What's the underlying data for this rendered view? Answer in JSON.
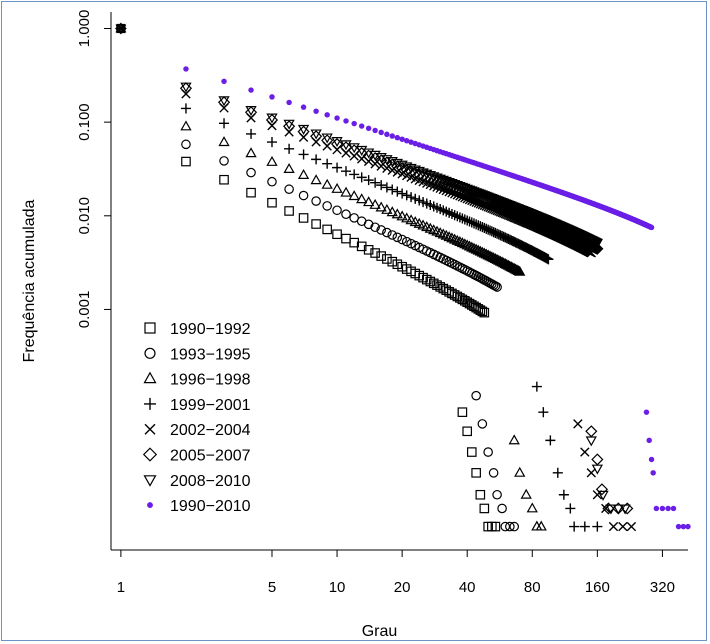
{
  "chart_data": {
    "type": "scatter",
    "title": "",
    "xlabel": "Grau",
    "ylabel": "Frequência acumulada",
    "x_scale": "log",
    "y_scale": "log",
    "x_ticks": [
      {
        "value": 1,
        "label": "1"
      },
      {
        "value": 5,
        "label": "5"
      },
      {
        "value": 10,
        "label": "10"
      },
      {
        "value": 20,
        "label": "20"
      },
      {
        "value": 40,
        "label": "40"
      },
      {
        "value": 80,
        "label": "80"
      },
      {
        "value": 160,
        "label": "160"
      },
      {
        "value": 320,
        "label": "320"
      }
    ],
    "y_ticks": [
      {
        "value": 1,
        "label": "1.000"
      },
      {
        "value": 0.1,
        "label": "0.100"
      },
      {
        "value": 0.01,
        "label": "0.010"
      },
      {
        "value": 0.001,
        "label": "0.001"
      }
    ],
    "xlim": [
      0.9,
      520
    ],
    "ylim": [
      2.7e-06,
      1.5
    ],
    "grid": false,
    "legend_position": "bottom-left",
    "series": [
      {
        "name": "1990−1992",
        "marker": "square",
        "color": "#000000",
        "params": {
          "a": 0.038,
          "b": 1.1,
          "k": 0.00045,
          "c": 1.6,
          "xmax": 48,
          "tail": [
            [
              38,
              8e-05
            ],
            [
              40,
              5e-05
            ],
            [
              42,
              3e-05
            ],
            [
              44,
              1.8e-05
            ],
            [
              46,
              1.05e-05
            ],
            [
              48,
              7.5e-06
            ],
            [
              50,
              4.8e-06
            ],
            [
              52,
              4.8e-06
            ],
            [
              54,
              4.8e-06
            ]
          ]
        }
      },
      {
        "name": "1993−1995",
        "marker": "circle",
        "color": "#000000",
        "params": {
          "a": 0.058,
          "b": 1.0,
          "k": 0.00032,
          "c": 1.6,
          "xmax": 55,
          "tail": [
            [
              44,
              0.00012
            ],
            [
              47,
              6e-05
            ],
            [
              50,
              3e-05
            ],
            [
              53,
              1.8e-05
            ],
            [
              55,
              1.05e-05
            ],
            [
              58,
              7.5e-06
            ],
            [
              60,
              4.8e-06
            ],
            [
              63,
              4.8e-06
            ],
            [
              66,
              4.8e-06
            ]
          ]
        }
      },
      {
        "name": "1996−1998",
        "marker": "triangle",
        "color": "#000000",
        "params": {
          "a": 0.09,
          "b": 0.95,
          "k": 0.00022,
          "c": 1.6,
          "xmax": 70,
          "tail": [
            [
              66,
              4e-05
            ],
            [
              70,
              1.8e-05
            ],
            [
              75,
              1.05e-05
            ],
            [
              80,
              7.5e-06
            ],
            [
              84,
              4.8e-06
            ],
            [
              88,
              4.8e-06
            ]
          ]
        }
      },
      {
        "name": "1999−2001",
        "marker": "plus",
        "color": "#000000",
        "params": {
          "a": 0.14,
          "b": 0.9,
          "k": 0.00016,
          "c": 1.6,
          "xmax": 95,
          "tail": [
            [
              84,
              0.00015
            ],
            [
              90,
              8e-05
            ],
            [
              97,
              4e-05
            ],
            [
              105,
              1.8e-05
            ],
            [
              112,
              1.05e-05
            ],
            [
              120,
              7.5e-06
            ],
            [
              125,
              4.8e-06
            ],
            [
              140,
              4.8e-06
            ],
            [
              160,
              4.8e-06
            ]
          ]
        }
      },
      {
        "name": "2002−2004",
        "marker": "cross",
        "color": "#000000",
        "params": {
          "a": 0.2,
          "b": 0.85,
          "k": 0.0001,
          "c": 1.55,
          "xmax": 150,
          "tail": [
            [
              130,
              6e-05
            ],
            [
              140,
              3e-05
            ],
            [
              150,
              1.8e-05
            ],
            [
              160,
              1.05e-05
            ],
            [
              175,
              7.5e-06
            ],
            [
              190,
              4.8e-06
            ],
            [
              210,
              4.8e-06
            ],
            [
              230,
              4.8e-06
            ]
          ]
        }
      },
      {
        "name": "2005−2007",
        "marker": "diamond",
        "color": "#000000",
        "params": {
          "a": 0.23,
          "b": 0.85,
          "k": 8.5e-05,
          "c": 1.55,
          "xmax": 160,
          "tail": [
            [
              150,
              5e-05
            ],
            [
              160,
              2.5e-05
            ],
            [
              168,
              1.2e-05
            ],
            [
              180,
              7.5e-06
            ],
            [
              200,
              7.5e-06
            ],
            [
              220,
              7.5e-06
            ]
          ]
        }
      },
      {
        "name": "2008−2010",
        "marker": "triangle-down",
        "color": "#000000",
        "params": {
          "a": 0.24,
          "b": 0.83,
          "k": 8e-05,
          "c": 1.55,
          "xmax": 160,
          "tail": [
            [
              150,
              4e-05
            ],
            [
              160,
              2e-05
            ],
            [
              170,
              1.05e-05
            ],
            [
              185,
              7.5e-06
            ],
            [
              200,
              7.5e-06
            ],
            [
              215,
              7.5e-06
            ]
          ]
        }
      },
      {
        "name": "1990−2010",
        "marker": "dot",
        "color": "#6a1ee6",
        "params": {
          "a": 0.37,
          "b": 0.75,
          "k": 9e-06,
          "c": 1.75,
          "xmax": 285,
          "tail": [
            [
              270,
              8e-05
            ],
            [
              278,
              4e-05
            ],
            [
              285,
              2.5e-05
            ],
            [
              290,
              1.8e-05
            ],
            [
              300,
              7.5e-06
            ],
            [
              320,
              7.5e-06
            ],
            [
              340,
              7.5e-06
            ],
            [
              360,
              7.5e-06
            ],
            [
              380,
              4.8e-06
            ],
            [
              400,
              4.8e-06
            ],
            [
              420,
              4.8e-06
            ]
          ]
        }
      }
    ],
    "anchor_point": {
      "x": 1,
      "y": 1.0
    }
  }
}
